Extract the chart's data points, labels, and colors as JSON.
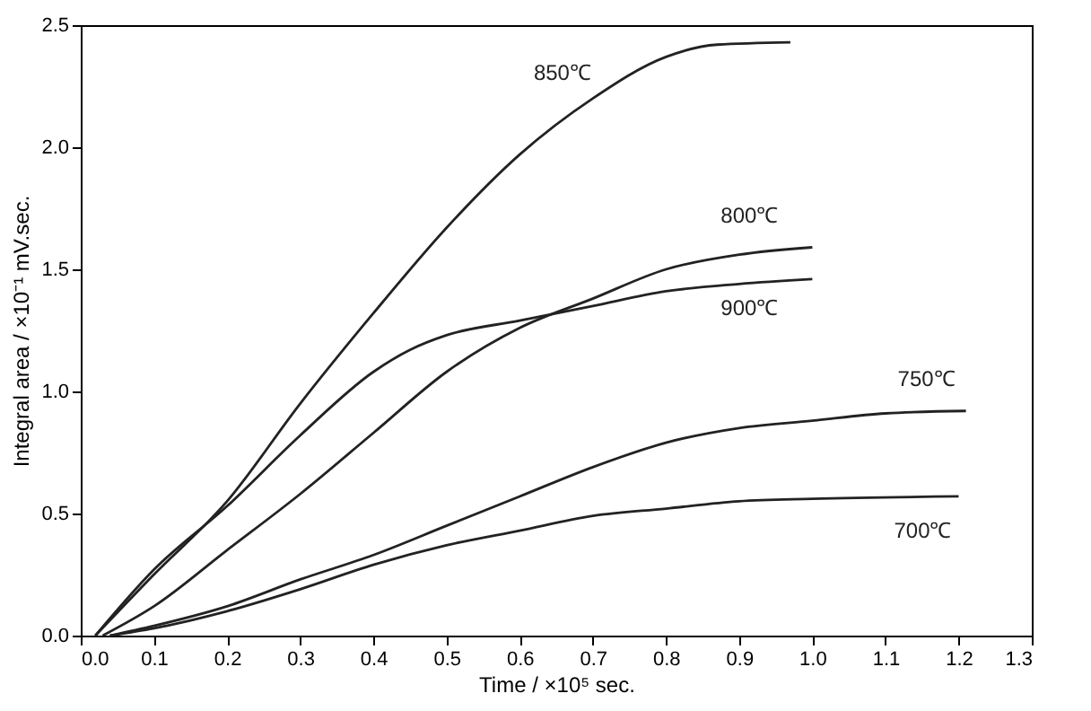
{
  "chart_data": {
    "type": "line",
    "xlabel": "Time / ×10⁵ sec.",
    "ylabel": "Integral area / ×10⁻¹ mV.sec.",
    "xlim": [
      0.0,
      1.3
    ],
    "xticks": [
      {
        "value": 0,
        "label": "0.0"
      },
      0.1,
      0.2,
      0.3,
      0.4,
      0.5,
      0.6,
      0.7,
      0.8,
      0.9,
      {
        "value": 1,
        "label": "1.0"
      },
      1.1,
      1.2,
      1.3
    ],
    "ylim": [
      0.0,
      2.5
    ],
    "yticks": [
      {
        "value": 0,
        "label": "0.0"
      },
      0.5,
      {
        "value": 1,
        "label": "1.0"
      },
      1.5,
      {
        "value": 2,
        "label": "2.0"
      },
      2.5
    ],
    "grid": false,
    "legend": false,
    "marker": "none",
    "line_style": "solid",
    "series": [
      {
        "name": "850℃",
        "color": "#222222",
        "x": [
          0.02,
          0.1,
          0.2,
          0.3,
          0.4,
          0.5,
          0.6,
          0.7,
          0.8,
          0.87,
          0.97
        ],
        "values": [
          0,
          0.25,
          0.55,
          0.95,
          1.32,
          1.67,
          1.97,
          2.2,
          2.37,
          2.42,
          2.43
        ]
      },
      {
        "name": "900℃",
        "color": "#222222",
        "x": [
          0.02,
          0.1,
          0.2,
          0.3,
          0.4,
          0.45,
          0.5,
          0.6,
          0.7,
          0.8,
          0.9,
          1.0
        ],
        "values": [
          0,
          0.27,
          0.53,
          0.82,
          1.08,
          1.17,
          1.23,
          1.29,
          1.35,
          1.41,
          1.44,
          1.46
        ]
      },
      {
        "name": "800℃",
        "color": "#222222",
        "x": [
          0.03,
          0.1,
          0.2,
          0.3,
          0.4,
          0.5,
          0.6,
          0.7,
          0.8,
          0.9,
          1.0
        ],
        "values": [
          0,
          0.12,
          0.35,
          0.58,
          0.83,
          1.08,
          1.26,
          1.38,
          1.5,
          1.56,
          1.59
        ]
      },
      {
        "name": "750℃",
        "color": "#222222",
        "x": [
          0.04,
          0.1,
          0.2,
          0.3,
          0.4,
          0.5,
          0.6,
          0.7,
          0.8,
          0.9,
          1.0,
          1.1,
          1.21
        ],
        "values": [
          0,
          0.04,
          0.12,
          0.23,
          0.33,
          0.45,
          0.57,
          0.69,
          0.79,
          0.85,
          0.88,
          0.91,
          0.92
        ]
      },
      {
        "name": "700℃",
        "color": "#222222",
        "x": [
          0.04,
          0.1,
          0.2,
          0.3,
          0.4,
          0.5,
          0.6,
          0.7,
          0.8,
          0.9,
          1.0,
          1.2
        ],
        "values": [
          0,
          0.03,
          0.1,
          0.19,
          0.29,
          0.37,
          0.43,
          0.49,
          0.52,
          0.55,
          0.56,
          0.57
        ]
      }
    ]
  }
}
